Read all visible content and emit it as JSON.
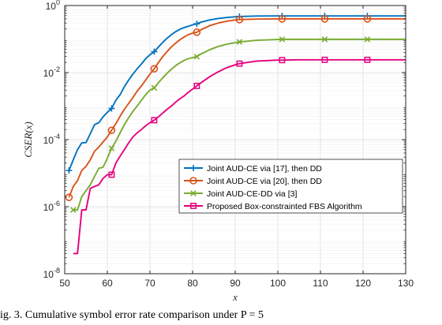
{
  "caption": "ig. 3. Cumulative symbol error rate comparison under P = 5",
  "chart_data": {
    "type": "line",
    "title": "",
    "xlabel": "x",
    "ylabel": "CSER(x)",
    "xlim": [
      50,
      130
    ],
    "ylim": [
      1e-08,
      1
    ],
    "yscale": "log",
    "grid": true,
    "legend_position": "lower-right",
    "xticks": [
      50,
      60,
      70,
      80,
      90,
      100,
      110,
      120,
      130
    ],
    "xtick_labels": [
      "50",
      "60",
      "70",
      "80",
      "90",
      "100",
      "110",
      "120",
      "130"
    ],
    "yticks": [
      1e-08,
      1e-06,
      0.0001,
      0.01,
      1
    ],
    "ytick_labels": [
      {
        "base": "10",
        "exp": "-8"
      },
      {
        "base": "10",
        "exp": "-6"
      },
      {
        "base": "10",
        "exp": "-4"
      },
      {
        "base": "10",
        "exp": "-2"
      },
      {
        "base": "10",
        "exp": "0"
      }
    ],
    "series": [
      {
        "name": "Joint AUD-CE via [17], then DD",
        "color": "#0072bd",
        "marker": "plus",
        "x": [
          51,
          52,
          53,
          54,
          55,
          56,
          57,
          58,
          59,
          60,
          61,
          62,
          63,
          64,
          65,
          66,
          67,
          68,
          69,
          70,
          71,
          72,
          73,
          74,
          75,
          76,
          77,
          78,
          79,
          80,
          81,
          82,
          84,
          86,
          88,
          90,
          91,
          95,
          100,
          101,
          105,
          110,
          111,
          115,
          120,
          121,
          125,
          130
        ],
        "y": [
          1.2e-05,
          2.5e-05,
          5e-05,
          8e-05,
          8.2e-05,
          0.00015,
          0.00028,
          0.00032,
          0.00048,
          0.00065,
          0.00085,
          0.0015,
          0.0022,
          0.0038,
          0.006,
          0.009,
          0.013,
          0.018,
          0.026,
          0.034,
          0.042,
          0.058,
          0.08,
          0.105,
          0.135,
          0.165,
          0.195,
          0.22,
          0.24,
          0.265,
          0.285,
          0.32,
          0.37,
          0.41,
          0.44,
          0.46,
          0.47,
          0.485,
          0.49,
          0.49,
          0.49,
          0.49,
          0.49,
          0.49,
          0.49,
          0.49,
          0.49,
          0.49
        ],
        "markers_x": [
          51,
          61,
          71,
          81,
          91,
          101,
          111,
          121
        ]
      },
      {
        "name": "Joint AUD-CE via [20], then DD",
        "color": "#d95319",
        "marker": "circle",
        "x": [
          51,
          52,
          53,
          54,
          55,
          56,
          57,
          58,
          59,
          60,
          61,
          62,
          63,
          64,
          65,
          66,
          67,
          68,
          69,
          70,
          71,
          72,
          73,
          74,
          75,
          76,
          77,
          78,
          79,
          80,
          81,
          82,
          84,
          86,
          88,
          90,
          91,
          95,
          100,
          101,
          105,
          110,
          111,
          115,
          120,
          121,
          125,
          130
        ],
        "y": [
          1.9e-06,
          4e-06,
          6e-06,
          1.2e-05,
          1.6e-05,
          2.5e-05,
          4.5e-05,
          6e-05,
          8.5e-05,
          0.00012,
          0.00019,
          0.0003,
          0.0005,
          0.0008,
          0.0012,
          0.0018,
          0.0028,
          0.004,
          0.006,
          0.009,
          0.013,
          0.02,
          0.03,
          0.042,
          0.058,
          0.075,
          0.095,
          0.115,
          0.135,
          0.15,
          0.16,
          0.19,
          0.25,
          0.3,
          0.34,
          0.37,
          0.38,
          0.395,
          0.4,
          0.4,
          0.4,
          0.4,
          0.4,
          0.4,
          0.4,
          0.4,
          0.4,
          0.4
        ],
        "markers_x": [
          51,
          61,
          71,
          81,
          91,
          101,
          111,
          121
        ]
      },
      {
        "name": "Joint AUD-CE-DD via [3]",
        "color": "#77ac30",
        "marker": "x",
        "x": [
          52,
          53,
          54,
          55,
          56,
          57,
          58,
          59,
          60,
          61,
          62,
          63,
          64,
          65,
          66,
          67,
          68,
          69,
          70,
          71,
          72,
          73,
          74,
          75,
          76,
          77,
          78,
          79,
          80,
          81,
          82,
          84,
          86,
          88,
          90,
          91,
          95,
          100,
          101,
          105,
          110,
          111,
          115,
          120,
          121,
          125,
          130
        ],
        "y": [
          8e-07,
          8e-07,
          2e-06,
          3e-06,
          4.5e-06,
          8e-06,
          1.4e-05,
          1.5e-05,
          2.8e-05,
          5.5e-05,
          9e-05,
          0.00016,
          0.00028,
          0.00045,
          0.0007,
          0.001,
          0.0015,
          0.0022,
          0.003,
          0.0035,
          0.005,
          0.007,
          0.0095,
          0.0125,
          0.016,
          0.0195,
          0.023,
          0.026,
          0.028,
          0.03,
          0.036,
          0.048,
          0.06,
          0.07,
          0.078,
          0.082,
          0.092,
          0.097,
          0.098,
          0.098,
          0.098,
          0.098,
          0.098,
          0.098,
          0.098,
          0.098,
          0.098
        ],
        "markers_x": [
          52,
          61,
          71,
          81,
          91,
          101,
          111,
          121
        ]
      },
      {
        "name": "Proposed Box-constrainted FBS Algorithm",
        "color": "#e6007e",
        "marker": "square",
        "x": [
          52,
          53,
          54,
          55,
          56,
          57,
          58,
          59,
          60,
          61,
          62,
          63,
          64,
          65,
          66,
          67,
          68,
          69,
          70,
          71,
          72,
          73,
          74,
          75,
          76,
          77,
          78,
          79,
          80,
          81,
          82,
          84,
          86,
          88,
          90,
          91,
          95,
          100,
          101,
          105,
          110,
          111,
          115,
          120,
          121,
          125,
          130
        ],
        "y": [
          4e-08,
          4e-08,
          8e-07,
          8e-07,
          3.5e-06,
          4e-06,
          4.5e-06,
          7e-06,
          9e-06,
          9e-06,
          2e-05,
          3.2e-05,
          5e-05,
          8e-05,
          0.00012,
          0.00016,
          0.0002,
          0.00026,
          0.00032,
          0.00038,
          0.00048,
          0.00062,
          0.0008,
          0.001,
          0.0013,
          0.00165,
          0.002,
          0.0026,
          0.0032,
          0.004,
          0.005,
          0.0075,
          0.0105,
          0.014,
          0.017,
          0.0185,
          0.022,
          0.0235,
          0.0235,
          0.024,
          0.024,
          0.024,
          0.024,
          0.024,
          0.024,
          0.024,
          0.024
        ],
        "markers_x": [
          61,
          71,
          81,
          91,
          101,
          111,
          121
        ]
      }
    ]
  }
}
